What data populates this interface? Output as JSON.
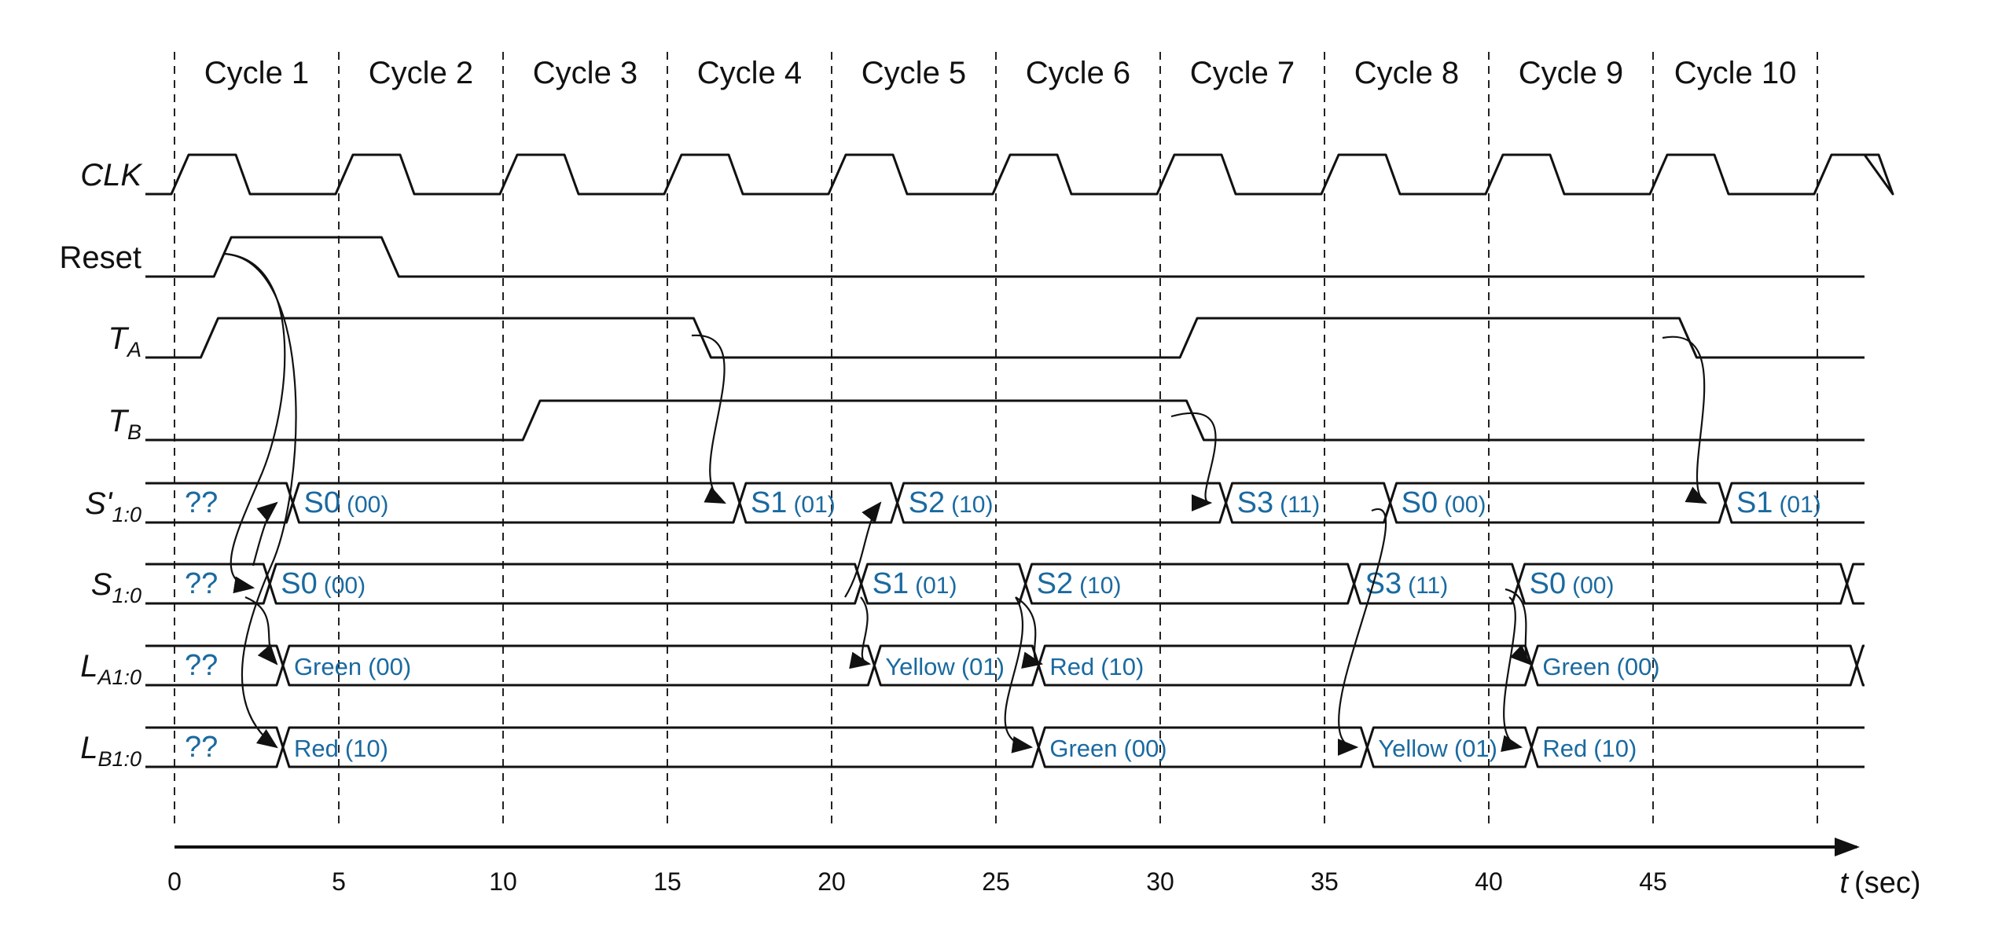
{
  "diagram": {
    "cycles": [
      "Cycle 1",
      "Cycle 2",
      "Cycle 3",
      "Cycle 4",
      "Cycle 5",
      "Cycle 6",
      "Cycle 7",
      "Cycle 8",
      "Cycle 9",
      "Cycle 10"
    ],
    "time_ticks": [
      "0",
      "5",
      "10",
      "15",
      "20",
      "25",
      "30",
      "35",
      "40",
      "45"
    ],
    "axis": {
      "variable": "t",
      "unit": "(sec)"
    },
    "signals": [
      {
        "id": "clk",
        "main": "CLK",
        "sub": "",
        "prime": false,
        "italic": true
      },
      {
        "id": "reset",
        "main": "Reset",
        "sub": "",
        "prime": false,
        "italic": false
      },
      {
        "id": "ta",
        "main": "T",
        "sub": "A",
        "prime": false,
        "italic": true
      },
      {
        "id": "tb",
        "main": "T",
        "sub": "B",
        "prime": false,
        "italic": true
      },
      {
        "id": "snext",
        "main": "S'",
        "sub": "1:0",
        "prime": true,
        "italic": true
      },
      {
        "id": "s",
        "main": "S",
        "sub": "1:0",
        "prime": false,
        "italic": true
      },
      {
        "id": "la",
        "main": "L",
        "sub": "A1:0",
        "prime": false,
        "italic": true
      },
      {
        "id": "lb",
        "main": "L",
        "sub": "B1:0",
        "prime": false,
        "italic": true
      }
    ],
    "levels": {
      "reset": [
        [
          0,
          0
        ],
        [
          1.2,
          1
        ],
        [
          6.3,
          0
        ]
      ],
      "ta": [
        [
          0,
          0
        ],
        [
          0.8,
          1
        ],
        [
          15.8,
          0
        ],
        [
          30.6,
          1
        ],
        [
          45.8,
          0
        ]
      ],
      "tb": [
        [
          0,
          0
        ],
        [
          10.6,
          1
        ],
        [
          30.8,
          0
        ]
      ]
    },
    "buses": {
      "snext": [
        {
          "start": -1,
          "name": "??",
          "code": ""
        },
        {
          "start": 3.6,
          "name": "S0",
          "code": "(00)"
        },
        {
          "start": 17.2,
          "name": "S1",
          "code": "(01)"
        },
        {
          "start": 22.0,
          "name": "S2",
          "code": "(10)"
        },
        {
          "start": 32.0,
          "name": "S3",
          "code": "(11)"
        },
        {
          "start": 37.0,
          "name": "S0",
          "code": "(00)"
        },
        {
          "start": 47.2,
          "name": "S1",
          "code": "(01)"
        }
      ],
      "s": [
        {
          "start": -1,
          "name": "??",
          "code": ""
        },
        {
          "start": 2.9,
          "name": "S0",
          "code": "(00)"
        },
        {
          "start": 20.9,
          "name": "S1",
          "code": "(01)"
        },
        {
          "start": 25.9,
          "name": "S2",
          "code": "(10)"
        },
        {
          "start": 35.9,
          "name": "S3",
          "code": "(11)"
        },
        {
          "start": 40.9,
          "name": "S0",
          "code": "(00)"
        },
        {
          "start": 50.9,
          "name": "",
          "code": ""
        }
      ],
      "la": [
        {
          "start": -1,
          "name": "??",
          "code": ""
        },
        {
          "start": 3.3,
          "name": "Green",
          "code": "(00)"
        },
        {
          "start": 21.3,
          "name": "Yellow",
          "code": "(01)"
        },
        {
          "start": 26.3,
          "name": "Red",
          "code": "(10)"
        },
        {
          "start": 41.3,
          "name": "Green",
          "code": "(00)"
        },
        {
          "start": 51.2,
          "name": "",
          "code": ""
        }
      ],
      "lb": [
        {
          "start": -1,
          "name": "??",
          "code": ""
        },
        {
          "start": 3.3,
          "name": "Red",
          "code": "(10)"
        },
        {
          "start": 26.3,
          "name": "Green",
          "code": "(00)"
        },
        {
          "start": 36.3,
          "name": "Yellow",
          "code": "(01)"
        },
        {
          "start": 41.3,
          "name": "Red",
          "code": "(10)"
        }
      ]
    },
    "colors": {
      "wave": "#111111",
      "bus_text": "#1a6aa0",
      "grid": "#222222"
    }
  }
}
